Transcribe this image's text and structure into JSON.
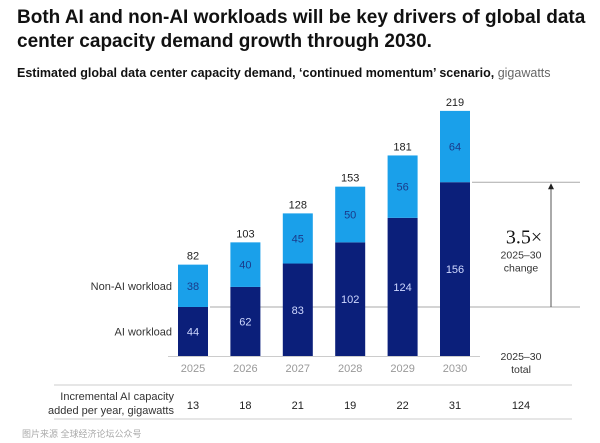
{
  "title": "Both AI and non-AI workloads will be key drivers of global data center capacity demand growth through 2030.",
  "subtitle": "Estimated global data center capacity demand, ‘continued momentum’ scenario,",
  "subtitle_unit": "gigawatts",
  "watermark": "图片来源 全球经济论坛公众号",
  "colors": {
    "ai": "#0b1f7a",
    "non_ai": "#1aa0ea"
  },
  "chart_data": {
    "type": "bar",
    "stacked": true,
    "categories": [
      "2025",
      "2026",
      "2027",
      "2028",
      "2029",
      "2030"
    ],
    "series": [
      {
        "name": "AI workload",
        "values": [
          44,
          62,
          83,
          102,
          124,
          156
        ]
      },
      {
        "name": "Non-AI workload",
        "values": [
          38,
          40,
          45,
          50,
          56,
          64
        ]
      }
    ],
    "totals": [
      82,
      103,
      128,
      153,
      181,
      219
    ],
    "ylim": [
      0,
      219
    ],
    "annotation": {
      "value": "3.5×",
      "label_line1": "2025–30",
      "label_line2": "change"
    },
    "total_column": {
      "label_line1": "2025–30",
      "label_line2": "total"
    },
    "table": {
      "row_label_line1": "Incremental AI capacity",
      "row_label_line2": "added per year, gigawatts",
      "values": [
        "13",
        "18",
        "21",
        "19",
        "22",
        "31"
      ],
      "total": "124"
    }
  }
}
